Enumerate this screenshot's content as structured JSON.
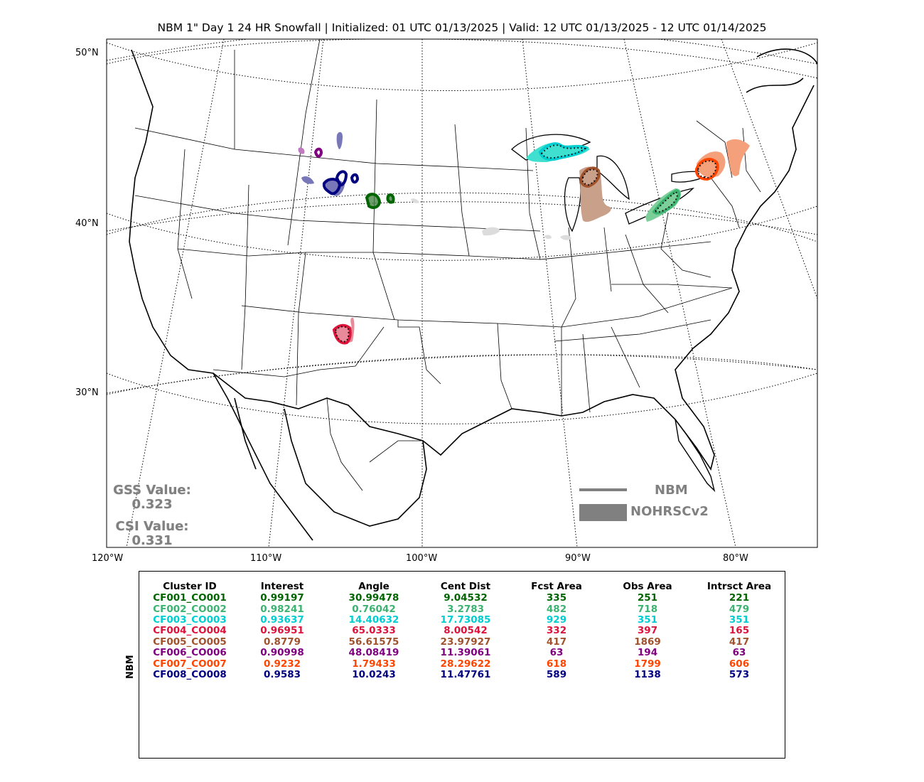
{
  "title": "NBM 1\" Day 1 24 HR Snowfall | Initialized: 01 UTC 01/13/2025 | Valid: 12 UTC 01/13/2025 - 12 UTC 01/14/2025",
  "lat_labels": [
    "50°N",
    "40°N",
    "30°N"
  ],
  "lon_labels": [
    "120°W",
    "110°W",
    "100°W",
    "90°W",
    "80°W"
  ],
  "stats": {
    "gss_label": "GSS Value:",
    "gss_value": "0.323",
    "csi_label": "CSI Value:",
    "csi_value": "0.331"
  },
  "legend": {
    "fcst_label": "NBM",
    "obs_label": "NOHRSCv2",
    "color": "#808080"
  },
  "table": {
    "side_label": "NBM",
    "headers": [
      "Cluster ID",
      "Interest",
      "Angle",
      "Cent Dist",
      "Fcst Area",
      "Obs Area",
      "Intrsct Area"
    ],
    "rows": [
      {
        "color": "#006400",
        "cells": [
          "CF001_CO001",
          "0.99197",
          "30.99478",
          "9.04532",
          "335",
          "251",
          "221"
        ]
      },
      {
        "color": "#3cb371",
        "cells": [
          "CF002_CO002",
          "0.98241",
          "0.76042",
          "3.2783",
          "482",
          "718",
          "479"
        ]
      },
      {
        "color": "#00ced1",
        "cells": [
          "CF003_CO003",
          "0.93637",
          "14.40632",
          "17.73085",
          "929",
          "351",
          "351"
        ]
      },
      {
        "color": "#dc143c",
        "cells": [
          "CF004_CO004",
          "0.96951",
          "65.0333",
          "8.00542",
          "332",
          "397",
          "165"
        ]
      },
      {
        "color": "#a0522d",
        "cells": [
          "CF005_CO005",
          "0.8779",
          "56.61575",
          "23.97927",
          "417",
          "1869",
          "417"
        ]
      },
      {
        "color": "#800080",
        "cells": [
          "CF006_CO006",
          "0.90998",
          "48.08419",
          "11.39061",
          "63",
          "194",
          "63"
        ]
      },
      {
        "color": "#ff4500",
        "cells": [
          "CF007_CO007",
          "0.9232",
          "1.79433",
          "28.29622",
          "618",
          "1799",
          "606"
        ]
      },
      {
        "color": "#000080",
        "cells": [
          "CF008_CO008",
          "0.9583",
          "10.0243",
          "11.47761",
          "589",
          "1138",
          "573"
        ]
      }
    ]
  },
  "clusters": [
    {
      "id": "CF001_CO001",
      "obs_color": "#3a7d3a",
      "fcst_color": "#006400"
    },
    {
      "id": "CF002_CO002",
      "obs_color": "#7dcf9a",
      "fcst_color": "#3cb371"
    },
    {
      "id": "CF003_CO003",
      "obs_color": "#40e0d0",
      "fcst_color": "#00ced1"
    },
    {
      "id": "CF004_CO004",
      "obs_color": "#e88a99",
      "fcst_color": "#dc143c"
    },
    {
      "id": "CF005_CO005",
      "obs_color": "#c9a08a",
      "fcst_color": "#a0522d"
    },
    {
      "id": "CF006_CO006",
      "obs_color": "#c07ac0",
      "fcst_color": "#800080"
    },
    {
      "id": "CF007_CO007",
      "obs_color": "#f4a07a",
      "fcst_color": "#ff4500"
    },
    {
      "id": "CF008_CO008",
      "obs_color": "#7878b8",
      "fcst_color": "#000080"
    }
  ]
}
